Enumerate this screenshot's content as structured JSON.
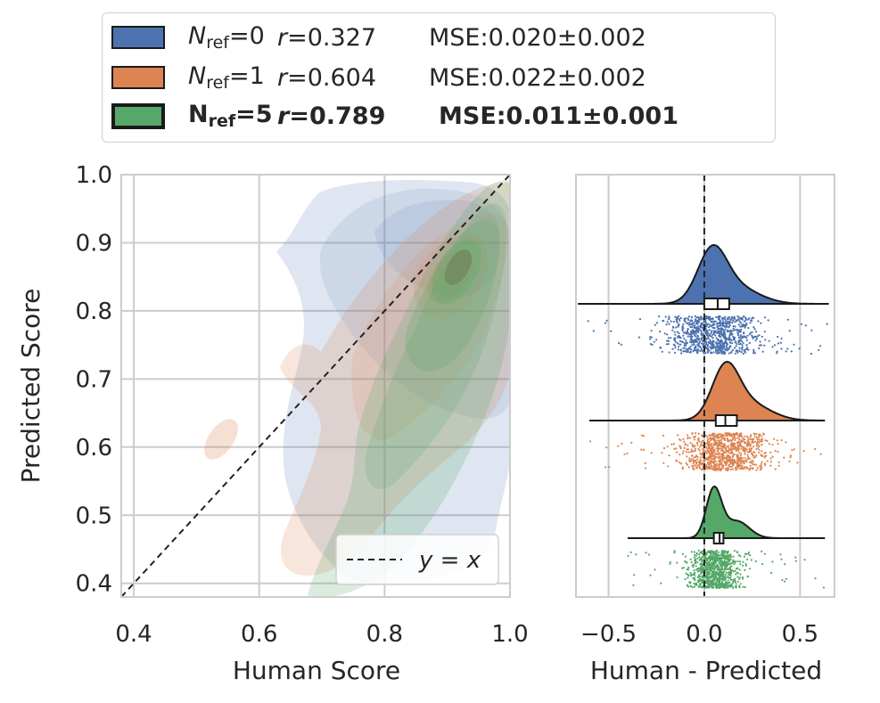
{
  "legend": {
    "items": [
      {
        "n_label": "N",
        "n_sub": "ref",
        "n_value": "=0",
        "r_label": "r",
        "r_value": "=0.327",
        "mse": "MSE:0.020±0.002",
        "color": "#4c72b0",
        "bold": false
      },
      {
        "n_label": "N",
        "n_sub": "ref",
        "n_value": "=1",
        "r_label": "r",
        "r_value": "=0.604",
        "mse": "MSE:0.022±0.002",
        "color": "#dd8452",
        "bold": false
      },
      {
        "n_label": "N",
        "n_sub": "ref",
        "n_value": "=5",
        "r_label": "r",
        "r_value": "=0.789",
        "mse": "MSE:0.011±0.001",
        "color": "#55a868",
        "bold": true
      }
    ]
  },
  "chart_data": [
    {
      "type": "kde-density",
      "xlabel": "Human Score",
      "ylabel": "Predicted Score",
      "xlim": [
        0.38,
        1.0
      ],
      "ylim": [
        0.38,
        1.0
      ],
      "xticks": [
        "0.4",
        "0.6",
        "0.8",
        "1.0"
      ],
      "yticks": [
        "0.4",
        "0.5",
        "0.6",
        "0.7",
        "0.8",
        "0.9",
        "1.0"
      ],
      "grid": true,
      "reference_line": {
        "label": "y = x",
        "style": "dashed"
      },
      "legend_placement": "bottom-right",
      "series": [
        {
          "name": "Nref=0",
          "color": "#4c72b0",
          "center": [
            0.9,
            0.9
          ]
        },
        {
          "name": "Nref=1",
          "color": "#dd8452",
          "center": [
            0.9,
            0.84
          ]
        },
        {
          "name": "Nref=5",
          "color": "#55a868",
          "center": [
            0.9,
            0.85
          ]
        }
      ]
    },
    {
      "type": "raincloud",
      "xlabel": "Human - Predicted",
      "xlim": [
        -0.67,
        0.68
      ],
      "xticks": [
        -0.5,
        0.0,
        0.5
      ],
      "xtick_labels": [
        "−0.5",
        "0.0",
        "0.5"
      ],
      "zero_line": true,
      "series": [
        {
          "name": "Nref=0",
          "color": "#4c72b0",
          "peak": 0.04,
          "spread": 0.075,
          "min": -0.66,
          "max": 0.65,
          "q1": 0.0,
          "median": 0.07,
          "q3": 0.13
        },
        {
          "name": "Nref=1",
          "color": "#dd8452",
          "peak": 0.11,
          "spread": 0.07,
          "min": -0.6,
          "max": 0.63,
          "q1": 0.06,
          "median": 0.11,
          "q3": 0.17
        },
        {
          "name": "Nref=5",
          "color": "#55a868",
          "peak": 0.05,
          "spread": 0.04,
          "min": -0.4,
          "max": 0.63,
          "q1": 0.05,
          "median": 0.08,
          "q3": 0.1
        }
      ]
    }
  ]
}
